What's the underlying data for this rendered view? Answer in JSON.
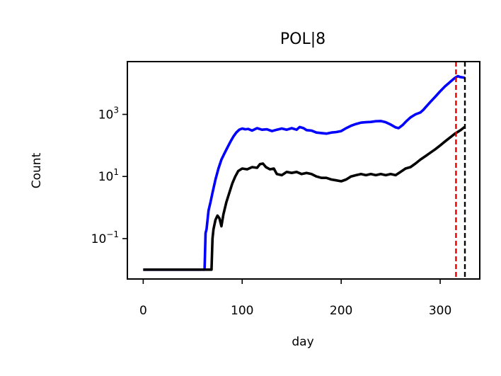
{
  "chart_data": {
    "type": "line",
    "title": "POL|8",
    "xlabel": "day",
    "ylabel": "Count",
    "y_scale": "log",
    "xlim": [
      -16,
      340
    ],
    "ylim": [
      0.005,
      50000
    ],
    "x_ticks": [
      0,
      100,
      200,
      300
    ],
    "x_tick_labels": [
      "0",
      "100",
      "200",
      "300"
    ],
    "y_ticks": [
      {
        "value": 0.1,
        "base": "10",
        "exp": "−1"
      },
      {
        "value": 10,
        "base": "10",
        "exp": "1"
      },
      {
        "value": 1000,
        "base": "10",
        "exp": "3"
      }
    ],
    "grid": false,
    "series": [
      {
        "color": "#0000ff",
        "points": [
          [
            0,
            0.01
          ],
          [
            30,
            0.01
          ],
          [
            62,
            0.01
          ],
          [
            63,
            0.15
          ],
          [
            64,
            0.2
          ],
          [
            66,
            0.8
          ],
          [
            68,
            1.5
          ],
          [
            70,
            3
          ],
          [
            73,
            8
          ],
          [
            76,
            18
          ],
          [
            79,
            35
          ],
          [
            82,
            55
          ],
          [
            85,
            85
          ],
          [
            88,
            130
          ],
          [
            91,
            190
          ],
          [
            94,
            260
          ],
          [
            97,
            320
          ],
          [
            100,
            350
          ],
          [
            103,
            330
          ],
          [
            106,
            340
          ],
          [
            110,
            300
          ],
          [
            115,
            360
          ],
          [
            120,
            320
          ],
          [
            125,
            330
          ],
          [
            130,
            290
          ],
          [
            135,
            320
          ],
          [
            140,
            350
          ],
          [
            145,
            320
          ],
          [
            150,
            360
          ],
          [
            155,
            320
          ],
          [
            158,
            390
          ],
          [
            162,
            360
          ],
          [
            165,
            310
          ],
          [
            170,
            300
          ],
          [
            175,
            260
          ],
          [
            180,
            250
          ],
          [
            185,
            240
          ],
          [
            190,
            260
          ],
          [
            195,
            270
          ],
          [
            200,
            290
          ],
          [
            205,
            360
          ],
          [
            210,
            430
          ],
          [
            215,
            490
          ],
          [
            220,
            540
          ],
          [
            225,
            560
          ],
          [
            230,
            570
          ],
          [
            235,
            600
          ],
          [
            240,
            610
          ],
          [
            245,
            560
          ],
          [
            250,
            470
          ],
          [
            255,
            380
          ],
          [
            258,
            360
          ],
          [
            262,
            450
          ],
          [
            266,
            610
          ],
          [
            270,
            800
          ],
          [
            275,
            1000
          ],
          [
            280,
            1150
          ],
          [
            283,
            1400
          ],
          [
            286,
            1800
          ],
          [
            290,
            2500
          ],
          [
            295,
            3700
          ],
          [
            300,
            5500
          ],
          [
            305,
            8000
          ],
          [
            310,
            11000
          ],
          [
            315,
            15000
          ],
          [
            318,
            17000
          ],
          [
            320,
            16000
          ],
          [
            325,
            15000
          ]
        ]
      },
      {
        "color": "#000000",
        "points": [
          [
            0,
            0.01
          ],
          [
            50,
            0.01
          ],
          [
            69,
            0.01
          ],
          [
            70,
            0.1
          ],
          [
            71,
            0.2
          ],
          [
            73,
            0.4
          ],
          [
            75,
            0.55
          ],
          [
            77,
            0.45
          ],
          [
            79,
            0.25
          ],
          [
            81,
            0.6
          ],
          [
            84,
            1.5
          ],
          [
            87,
            3
          ],
          [
            90,
            6
          ],
          [
            93,
            10
          ],
          [
            96,
            15
          ],
          [
            100,
            18
          ],
          [
            105,
            17
          ],
          [
            110,
            20
          ],
          [
            115,
            19
          ],
          [
            118,
            25
          ],
          [
            121,
            26
          ],
          [
            124,
            20
          ],
          [
            128,
            17
          ],
          [
            132,
            18
          ],
          [
            135,
            12
          ],
          [
            140,
            11
          ],
          [
            145,
            14
          ],
          [
            150,
            13
          ],
          [
            155,
            14
          ],
          [
            160,
            12
          ],
          [
            165,
            13
          ],
          [
            170,
            12
          ],
          [
            175,
            10
          ],
          [
            180,
            9
          ],
          [
            185,
            9
          ],
          [
            190,
            8
          ],
          [
            195,
            7.5
          ],
          [
            200,
            7
          ],
          [
            205,
            8
          ],
          [
            210,
            10
          ],
          [
            215,
            11
          ],
          [
            220,
            12
          ],
          [
            225,
            11
          ],
          [
            230,
            12
          ],
          [
            235,
            11
          ],
          [
            240,
            12
          ],
          [
            245,
            11
          ],
          [
            250,
            12
          ],
          [
            255,
            11
          ],
          [
            260,
            14
          ],
          [
            265,
            18
          ],
          [
            270,
            20
          ],
          [
            275,
            26
          ],
          [
            280,
            35
          ],
          [
            285,
            45
          ],
          [
            290,
            58
          ],
          [
            295,
            75
          ],
          [
            300,
            100
          ],
          [
            305,
            135
          ],
          [
            310,
            180
          ],
          [
            315,
            240
          ],
          [
            320,
            300
          ],
          [
            325,
            400
          ]
        ]
      }
    ],
    "vlines": [
      {
        "x": 316,
        "color": "#e00000",
        "style": "dashed"
      },
      {
        "x": 325,
        "color": "#000000",
        "style": "dashed"
      }
    ]
  }
}
